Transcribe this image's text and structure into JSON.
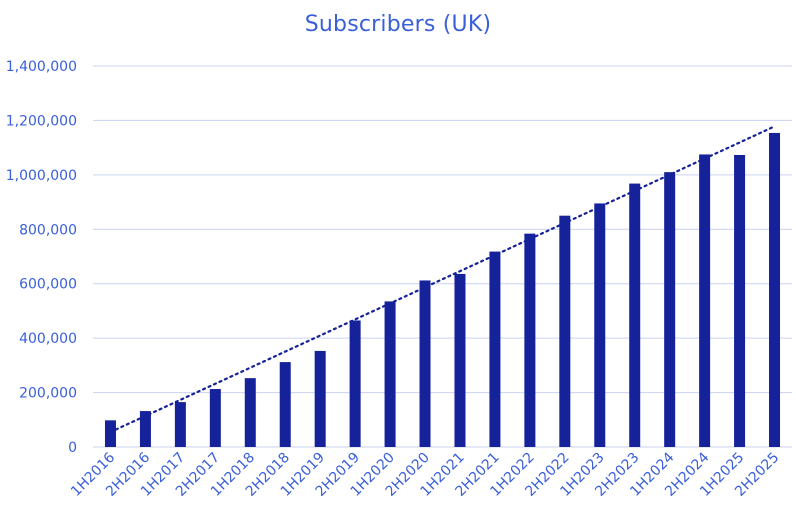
{
  "chart_data": {
    "type": "bar",
    "title": "Subscribers (UK)",
    "xlabel": "",
    "ylabel": "",
    "categories": [
      "1H2016",
      "2H2016",
      "1H2017",
      "2H2017",
      "1H2018",
      "2H2018",
      "1H2019",
      "2H2019",
      "1H2020",
      "2H2020",
      "1H2021",
      "2H2021",
      "1H2022",
      "2H2022",
      "1H2023",
      "2H2023",
      "1H2024",
      "2H2024",
      "1H2025",
      "2H2025"
    ],
    "series": [
      {
        "values": [
          98000,
          132000,
          165000,
          213000,
          253000,
          312000,
          353000,
          465000,
          535000,
          612000,
          636000,
          718000,
          784000,
          850000,
          895000,
          968000,
          1010000,
          1075000,
          1073000,
          1154000
        ]
      }
    ],
    "trendline": {
      "type": "linear",
      "style": "dotted",
      "start": 55000,
      "end": 1178000
    },
    "ylim": [
      0,
      1400000
    ],
    "yticks": [
      0,
      200000,
      400000,
      600000,
      800000,
      1000000,
      1200000,
      1400000
    ],
    "ytick_labels": [
      "0",
      "200,000",
      "400,000",
      "600,000",
      "800,000",
      "1,000,000",
      "1,200,000",
      "1,400,000"
    ],
    "grid": true,
    "legend": "none",
    "colors": {
      "bar": "#15229a",
      "trendline": "#15229a",
      "text": "#3a5fd9",
      "grid": "#c9d2ef"
    }
  }
}
